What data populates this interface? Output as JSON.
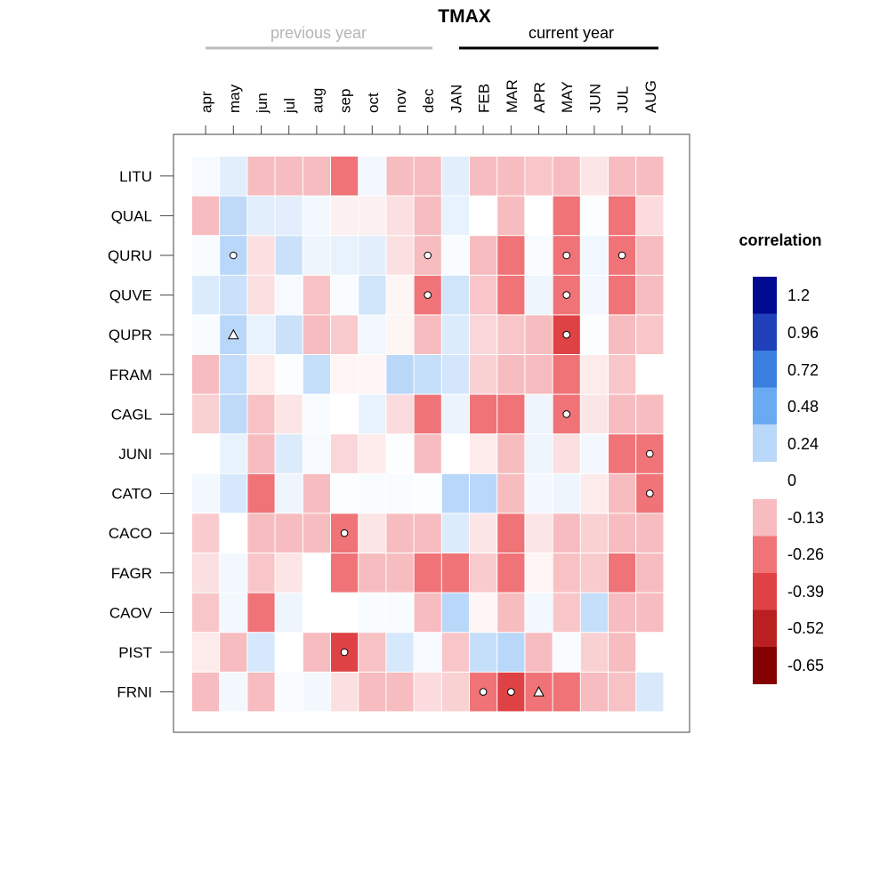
{
  "chart_data": {
    "type": "heatmap",
    "title": "TMAX",
    "period_labels": {
      "previous": "previous year",
      "current": "current year"
    },
    "period_colors": {
      "previous": "#bdbdbd",
      "current": "#000000"
    },
    "x": [
      "apr",
      "may",
      "jun",
      "jul",
      "aug",
      "sep",
      "oct",
      "nov",
      "dec",
      "JAN",
      "FEB",
      "MAR",
      "APR",
      "MAY",
      "JUN",
      "JUL",
      "AUG"
    ],
    "previous_count": 9,
    "y": [
      "LITU",
      "QUAL",
      "QURU",
      "QUVE",
      "QUPR",
      "FRAM",
      "CAGL",
      "JUNI",
      "CATO",
      "CACO",
      "FAGR",
      "CAOV",
      "PIST",
      "FRNI"
    ],
    "values": [
      [
        0.03,
        0.1,
        -0.23,
        -0.14,
        -0.15,
        -0.31,
        0.04,
        -0.17,
        -0.24,
        0.1,
        -0.16,
        -0.25,
        -0.11,
        -0.25,
        -0.05,
        -0.21,
        -0.15
      ],
      [
        -0.15,
        0.22,
        0.1,
        0.1,
        0.04,
        -0.03,
        -0.03,
        -0.06,
        -0.25,
        0.08,
        0.0,
        -0.14,
        0.0,
        -0.35,
        0.01,
        -0.37,
        -0.07
      ],
      [
        0.02,
        0.45,
        -0.06,
        0.18,
        0.06,
        0.08,
        0.1,
        -0.06,
        -0.25,
        0.02,
        -0.15,
        -0.32,
        0.02,
        -0.32,
        0.05,
        -0.28,
        -0.2
      ],
      [
        0.12,
        0.18,
        -0.06,
        0.03,
        -0.12,
        0.02,
        0.16,
        -0.02,
        -0.37,
        0.16,
        -0.11,
        -0.28,
        0.06,
        -0.3,
        0.04,
        -0.28,
        -0.13
      ],
      [
        0.02,
        0.38,
        0.08,
        0.18,
        -0.14,
        -0.1,
        0.04,
        -0.02,
        -0.15,
        0.12,
        -0.08,
        -0.11,
        -0.15,
        -0.4,
        0.01,
        -0.17,
        -0.11
      ],
      [
        -0.14,
        0.21,
        -0.04,
        0.01,
        0.2,
        -0.02,
        -0.02,
        0.4,
        0.2,
        0.15,
        -0.09,
        -0.14,
        -0.14,
        -0.28,
        -0.04,
        -0.11,
        0.0
      ],
      [
        -0.09,
        0.22,
        -0.12,
        -0.05,
        0.02,
        0.0,
        0.08,
        -0.07,
        -0.3,
        0.07,
        -0.28,
        -0.33,
        0.06,
        -0.35,
        -0.05,
        -0.25,
        -0.2
      ],
      [
        0.0,
        0.08,
        -0.21,
        0.12,
        0.03,
        -0.08,
        -0.04,
        0.01,
        -0.25,
        0.0,
        -0.04,
        -0.16,
        0.06,
        -0.06,
        0.04,
        -0.32,
        -0.34
      ],
      [
        0.04,
        0.14,
        -0.26,
        0.06,
        -0.13,
        0.01,
        0.02,
        0.02,
        0.01,
        0.3,
        0.25,
        -0.17,
        0.04,
        0.06,
        -0.04,
        -0.17,
        -0.33
      ],
      [
        -0.1,
        0.0,
        -0.24,
        -0.17,
        -0.22,
        -0.35,
        -0.05,
        -0.15,
        -0.25,
        0.12,
        -0.05,
        -0.26,
        -0.05,
        -0.14,
        -0.09,
        -0.23,
        -0.19
      ],
      [
        -0.06,
        0.04,
        -0.11,
        -0.05,
        0.0,
        -0.27,
        -0.23,
        -0.24,
        -0.27,
        -0.26,
        -0.1,
        -0.26,
        -0.02,
        -0.12,
        -0.1,
        -0.36,
        -0.24
      ],
      [
        -0.11,
        0.04,
        -0.28,
        0.06,
        0.0,
        0.0,
        0.02,
        0.02,
        -0.25,
        0.28,
        -0.02,
        -0.18,
        0.04,
        -0.11,
        0.2,
        -0.13,
        -0.25
      ],
      [
        -0.04,
        -0.14,
        0.14,
        0.0,
        -0.23,
        -0.43,
        -0.12,
        0.14,
        0.03,
        -0.11,
        0.2,
        0.25,
        -0.18,
        0.02,
        -0.09,
        -0.23,
        0.0
      ],
      [
        -0.16,
        0.04,
        -0.21,
        0.02,
        0.04,
        -0.06,
        -0.15,
        -0.22,
        -0.07,
        -0.09,
        -0.38,
        -0.4,
        -0.38,
        -0.29,
        -0.2,
        -0.12,
        0.13
      ]
    ],
    "markers": [
      {
        "row": 2,
        "col": 1,
        "shape": "circle"
      },
      {
        "row": 2,
        "col": 8,
        "shape": "circle"
      },
      {
        "row": 2,
        "col": 13,
        "shape": "circle"
      },
      {
        "row": 2,
        "col": 15,
        "shape": "circle"
      },
      {
        "row": 3,
        "col": 8,
        "shape": "circle"
      },
      {
        "row": 3,
        "col": 13,
        "shape": "circle"
      },
      {
        "row": 4,
        "col": 1,
        "shape": "triangle"
      },
      {
        "row": 4,
        "col": 13,
        "shape": "circle"
      },
      {
        "row": 6,
        "col": 13,
        "shape": "circle"
      },
      {
        "row": 7,
        "col": 16,
        "shape": "circle"
      },
      {
        "row": 8,
        "col": 16,
        "shape": "circle"
      },
      {
        "row": 9,
        "col": 5,
        "shape": "circle"
      },
      {
        "row": 12,
        "col": 5,
        "shape": "circle"
      },
      {
        "row": 13,
        "col": 10,
        "shape": "circle"
      },
      {
        "row": 13,
        "col": 11,
        "shape": "circle"
      },
      {
        "row": 13,
        "col": 12,
        "shape": "triangle"
      }
    ],
    "legend": {
      "title": "correlation",
      "placement": "right",
      "positive": {
        "breaks": [
          0,
          0.24,
          0.48,
          0.72,
          0.96,
          1.2
        ],
        "colors": [
          "#ffffff",
          "#b9d7f8",
          "#6aaaf2",
          "#3a7ee0",
          "#1f40b8",
          "#000b8f"
        ]
      },
      "negative": {
        "breaks": [
          0,
          -0.13,
          -0.26,
          -0.39,
          -0.52,
          -0.65
        ],
        "colors": [
          "#ffffff",
          "#f7bcbf",
          "#ef7377",
          "#df4245",
          "#b9201f",
          "#850000"
        ]
      },
      "labels": [
        "1.2",
        "0.96",
        "0.72",
        "0.48",
        "0.24",
        "0",
        "-0.13",
        "-0.26",
        "-0.39",
        "-0.52",
        "-0.65"
      ]
    }
  }
}
